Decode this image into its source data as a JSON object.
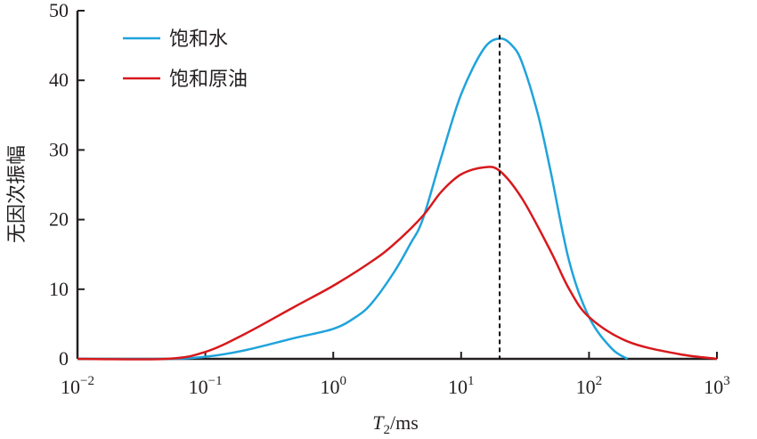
{
  "chart_data": {
    "type": "line",
    "xlabel_main": "T",
    "xlabel_sub": "2",
    "xlabel_unit": "/ms",
    "ylabel": "无因次振幅",
    "xscale": "log",
    "xlim": [
      0.01,
      1000
    ],
    "ylim": [
      0,
      50
    ],
    "x_ticks": [
      {
        "base": "10",
        "exp": "−2",
        "value": 0.01
      },
      {
        "base": "10",
        "exp": "−1",
        "value": 0.1
      },
      {
        "base": "10",
        "exp": "0",
        "value": 1
      },
      {
        "base": "10",
        "exp": "1",
        "value": 10
      },
      {
        "base": "10",
        "exp": "2",
        "value": 100
      },
      {
        "base": "10",
        "exp": "3",
        "value": 1000
      }
    ],
    "y_ticks": [
      "0",
      "10",
      "20",
      "30",
      "40",
      "50"
    ],
    "grid": false,
    "legend_position": "top-left",
    "reference_line_x": 20,
    "series": [
      {
        "name": "饱和水",
        "color": "#1fa3dc",
        "x": [
          0.01,
          0.05,
          0.1,
          0.2,
          0.5,
          1,
          1.5,
          2,
          3,
          4,
          5,
          7,
          10,
          15,
          20,
          25,
          30,
          40,
          50,
          70,
          100,
          150,
          200
        ],
        "y": [
          0,
          0,
          0.3,
          1.2,
          3,
          4.3,
          6,
          8,
          12.5,
          16.5,
          20,
          29,
          38,
          44.5,
          46,
          45,
          42.5,
          35,
          27,
          14,
          6,
          1.5,
          0
        ]
      },
      {
        "name": "饱和原油",
        "color": "#d7191c",
        "x": [
          0.01,
          0.05,
          0.1,
          0.2,
          0.5,
          1,
          2,
          3,
          5,
          7,
          10,
          15,
          20,
          30,
          50,
          70,
          100,
          200,
          500,
          1000
        ],
        "y": [
          0,
          0,
          1,
          3.5,
          7.5,
          10.5,
          14,
          16.5,
          20.5,
          24,
          26.5,
          27.5,
          27,
          23,
          15.5,
          10,
          6,
          2.5,
          0.7,
          0
        ]
      }
    ]
  }
}
